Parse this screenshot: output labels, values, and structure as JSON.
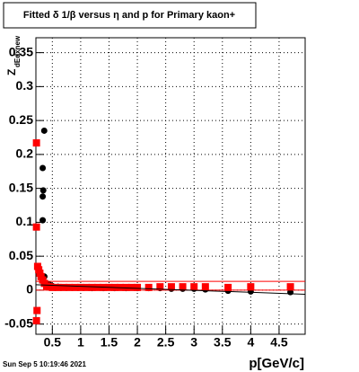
{
  "chart_data": {
    "type": "scatter",
    "title": "Fitted δ 1/β versus η and p for Primary kaon+",
    "x_label": "p[GeV/c]",
    "y_label": {
      "main": "Z",
      "sub": "dEdxnew"
    },
    "timestamp": "Sun Sep  5 10:19:46 2021",
    "xlim": [
      0.21,
      4.96
    ],
    "ylim": [
      -0.065,
      0.372
    ],
    "xticks": [
      0.5,
      1,
      1.5,
      2,
      2.5,
      3,
      3.5,
      4,
      4.5
    ],
    "yticks": [
      -0.05,
      0,
      0.05,
      0.1,
      0.15,
      0.2,
      0.25,
      0.3,
      0.35
    ],
    "grid": true,
    "series": [
      {
        "color": "#000000",
        "marker": "circle",
        "x": [
          0.357,
          0.33,
          0.34,
          0.33,
          0.33,
          0.36,
          0.4,
          0.45,
          0.5,
          0.6,
          0.7,
          0.8,
          0.9,
          1.0,
          1.2,
          1.4,
          1.6,
          1.8,
          2.0,
          2.2,
          2.4,
          2.6,
          2.8,
          3.0,
          3.2,
          3.6,
          4.0,
          4.7
        ],
        "values": [
          0.235,
          0.18,
          0.147,
          0.138,
          0.103,
          0.02,
          0.01,
          0.008,
          0.006,
          0.005,
          0.004,
          0.004,
          0.004,
          0.004,
          0.003,
          0.003,
          0.003,
          0.003,
          0.003,
          0.003,
          0.003,
          0.002,
          0.002,
          0.002,
          0.001,
          -0.001,
          -0.002,
          -0.003
        ]
      },
      {
        "color": "#ff0000",
        "marker": "square",
        "x": [
          0.22,
          0.22,
          0.22,
          0.23,
          0.24,
          0.26,
          0.28,
          0.3,
          0.33,
          0.36,
          0.4,
          0.45,
          0.5,
          0.6,
          0.7,
          0.8,
          0.9,
          1.0,
          1.1,
          1.2,
          1.3,
          1.4,
          1.5,
          1.6,
          1.7,
          1.8,
          1.9,
          2.0,
          2.2,
          2.4,
          2.6,
          2.8,
          3.0,
          3.2,
          3.6,
          4.0,
          4.7
        ],
        "values": [
          0.217,
          0.093,
          -0.045,
          -0.03,
          0.035,
          0.03,
          0.025,
          0.02,
          0.015,
          0.01,
          0.006,
          0.005,
          0.004,
          0.004,
          0.004,
          0.004,
          0.004,
          0.004,
          0.004,
          0.004,
          0.004,
          0.004,
          0.004,
          0.004,
          0.004,
          0.004,
          0.004,
          0.004,
          0.004,
          0.005,
          0.005,
          0.005,
          0.005,
          0.005,
          0.004,
          0.005,
          0.005
        ]
      },
      {
        "color": "#ff0000",
        "marker": "line",
        "x": [
          0.21,
          4.96
        ],
        "values": [
          0.013,
          0.013
        ]
      },
      {
        "color": "#ff0000",
        "marker": "line",
        "x": [
          0.21,
          4.96
        ],
        "values": [
          0.0,
          0.0
        ]
      },
      {
        "color": "#000000",
        "marker": "line",
        "x": [
          0.21,
          4.96
        ],
        "values": [
          0.008,
          -0.006
        ]
      }
    ]
  }
}
